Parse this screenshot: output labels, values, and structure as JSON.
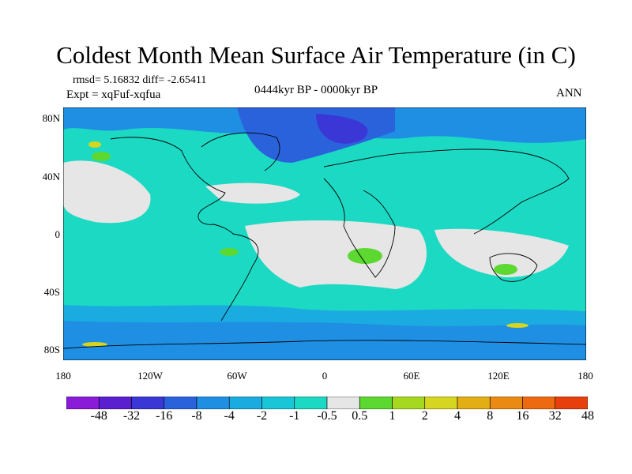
{
  "title": "Coldest Month Mean Surface Air Temperature (in C)",
  "stats": "rmsd= 5.16832 diff= -2.65411",
  "experiment": "Expt = xqFuf-xqfua",
  "period": "0444kyr BP - 0000kyr BP",
  "season": "ANN",
  "map": {
    "y_ticks": [
      "80N",
      "40N",
      "0",
      "40S",
      "80S"
    ],
    "x_ticks": [
      "180",
      "120W",
      "60W",
      "0",
      "60E",
      "120E",
      "180"
    ]
  },
  "colorbar": {
    "labels": [
      "-48",
      "-32",
      "-16",
      "-8",
      "-4",
      "-2",
      "-1",
      "-0.5",
      "0.5",
      "1",
      "2",
      "4",
      "8",
      "16",
      "32",
      "48"
    ],
    "colors": [
      "#8a1bd8",
      "#5a1fcf",
      "#3a37d6",
      "#2a62dc",
      "#1f8fe4",
      "#1aace0",
      "#19c6d8",
      "#1cd9c3",
      "#e6e6e6",
      "#5cd830",
      "#a6d81f",
      "#d6d520",
      "#e3ad14",
      "#ea8a12",
      "#ee6a10",
      "#e8400d"
    ]
  }
}
